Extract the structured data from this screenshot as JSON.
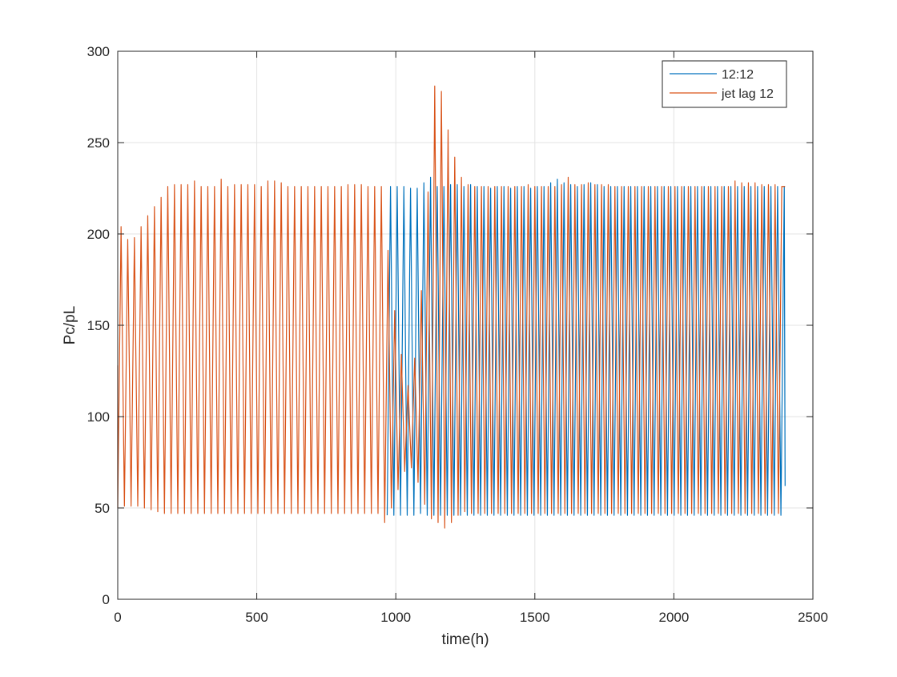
{
  "chart_data": {
    "type": "line",
    "title": "",
    "xlabel": "time(h)",
    "ylabel": "Pc/pL",
    "xlim": [
      0,
      2500
    ],
    "ylim": [
      0,
      300
    ],
    "xticks": [
      0,
      500,
      1000,
      1500,
      2000,
      2500
    ],
    "yticks": [
      0,
      50,
      100,
      150,
      200,
      250,
      300
    ],
    "grid": true,
    "legend_position": "top-right",
    "series": [
      {
        "name": "12:12",
        "color": "#0072BD",
        "period_h": 24,
        "x_range": [
          960,
          2400
        ],
        "peaks": [
          [
            981,
            226
          ],
          [
            1005,
            226
          ],
          [
            1029,
            226
          ],
          [
            1053,
            225
          ],
          [
            1077,
            225
          ],
          [
            1101,
            228
          ],
          [
            1125,
            231
          ],
          [
            1149,
            226
          ],
          [
            1173,
            226
          ],
          [
            1197,
            227
          ],
          [
            1221,
            227
          ],
          [
            1245,
            226
          ],
          [
            1269,
            227
          ],
          [
            1293,
            226
          ],
          [
            1317,
            226
          ],
          [
            1341,
            225
          ],
          [
            1365,
            226
          ],
          [
            1389,
            226
          ],
          [
            1413,
            225
          ],
          [
            1437,
            226
          ],
          [
            1461,
            226
          ],
          [
            1485,
            225
          ],
          [
            1509,
            226
          ],
          [
            1533,
            226
          ],
          [
            1557,
            228
          ],
          [
            1581,
            230
          ],
          [
            1605,
            228
          ],
          [
            1629,
            227
          ],
          [
            1653,
            226
          ],
          [
            1677,
            227
          ],
          [
            1701,
            228
          ],
          [
            1725,
            227
          ],
          [
            1749,
            226
          ],
          [
            1773,
            226
          ],
          [
            1797,
            226
          ],
          [
            1821,
            226
          ],
          [
            1845,
            226
          ],
          [
            1869,
            226
          ],
          [
            1893,
            226
          ],
          [
            1917,
            226
          ],
          [
            1941,
            226
          ],
          [
            1965,
            226
          ],
          [
            1989,
            226
          ],
          [
            2013,
            226
          ],
          [
            2037,
            226
          ],
          [
            2061,
            226
          ],
          [
            2085,
            226
          ],
          [
            2109,
            226
          ],
          [
            2133,
            226
          ],
          [
            2157,
            226
          ],
          [
            2181,
            226
          ],
          [
            2205,
            226
          ],
          [
            2229,
            226
          ],
          [
            2253,
            226
          ],
          [
            2277,
            226
          ],
          [
            2301,
            226
          ],
          [
            2325,
            226
          ],
          [
            2349,
            226
          ],
          [
            2373,
            226
          ],
          [
            2397,
            226
          ]
        ],
        "troughs": [
          [
            969,
            46
          ],
          [
            993,
            46
          ],
          [
            1017,
            46
          ],
          [
            1041,
            46
          ],
          [
            1065,
            46
          ],
          [
            1089,
            47
          ],
          [
            1113,
            46
          ],
          [
            1137,
            46
          ],
          [
            1161,
            46
          ],
          [
            1185,
            46
          ],
          [
            1209,
            46
          ],
          [
            1233,
            46
          ],
          [
            1257,
            46
          ],
          [
            1281,
            46
          ],
          [
            1305,
            46
          ],
          [
            1329,
            46
          ],
          [
            1353,
            46
          ],
          [
            1377,
            46
          ],
          [
            1401,
            46
          ],
          [
            1425,
            46
          ],
          [
            1449,
            46
          ],
          [
            1473,
            46
          ],
          [
            1497,
            46
          ],
          [
            1521,
            46
          ],
          [
            1545,
            46
          ],
          [
            1569,
            46
          ],
          [
            1593,
            46
          ],
          [
            1617,
            46
          ],
          [
            1641,
            46
          ],
          [
            1665,
            46
          ],
          [
            1689,
            46
          ],
          [
            1713,
            46
          ],
          [
            1737,
            46
          ],
          [
            1761,
            46
          ],
          [
            1785,
            46
          ],
          [
            1809,
            46
          ],
          [
            1833,
            46
          ],
          [
            1857,
            46
          ],
          [
            1881,
            46
          ],
          [
            1905,
            46
          ],
          [
            1929,
            46
          ],
          [
            1953,
            46
          ],
          [
            1977,
            46
          ],
          [
            2001,
            46
          ],
          [
            2025,
            46
          ],
          [
            2049,
            46
          ],
          [
            2073,
            46
          ],
          [
            2097,
            46
          ],
          [
            2121,
            46
          ],
          [
            2145,
            46
          ],
          [
            2169,
            46
          ],
          [
            2193,
            46
          ],
          [
            2217,
            46
          ],
          [
            2241,
            46
          ],
          [
            2265,
            46
          ],
          [
            2289,
            46
          ],
          [
            2313,
            46
          ],
          [
            2337,
            46
          ],
          [
            2361,
            46
          ],
          [
            2385,
            46
          ]
        ],
        "end_point": [
          2400,
          62
        ]
      },
      {
        "name": "jet lag 12",
        "color": "#D95319",
        "period_h": 24,
        "start_point": [
          0,
          128
        ],
        "peaks": [
          [
            12,
            204
          ],
          [
            36,
            197
          ],
          [
            60,
            198
          ],
          [
            84,
            204
          ],
          [
            108,
            210
          ],
          [
            132,
            215
          ],
          [
            156,
            220
          ],
          [
            180,
            226
          ],
          [
            204,
            227
          ],
          [
            228,
            227
          ],
          [
            252,
            227
          ],
          [
            276,
            229
          ],
          [
            300,
            226
          ],
          [
            324,
            226
          ],
          [
            348,
            226
          ],
          [
            372,
            230
          ],
          [
            396,
            226
          ],
          [
            420,
            227
          ],
          [
            444,
            227
          ],
          [
            468,
            227
          ],
          [
            492,
            227
          ],
          [
            516,
            226
          ],
          [
            540,
            229
          ],
          [
            564,
            229
          ],
          [
            588,
            228
          ],
          [
            612,
            226
          ],
          [
            636,
            226
          ],
          [
            660,
            226
          ],
          [
            684,
            226
          ],
          [
            708,
            226
          ],
          [
            732,
            226
          ],
          [
            756,
            226
          ],
          [
            780,
            226
          ],
          [
            804,
            226
          ],
          [
            828,
            227
          ],
          [
            852,
            227
          ],
          [
            876,
            227
          ],
          [
            900,
            226
          ],
          [
            924,
            226
          ],
          [
            948,
            226
          ],
          [
            972,
            191
          ],
          [
            996,
            158
          ],
          [
            1020,
            134
          ],
          [
            1044,
            117
          ],
          [
            1068,
            132
          ],
          [
            1092,
            169
          ],
          [
            1116,
            223
          ],
          [
            1140,
            281
          ],
          [
            1164,
            278
          ],
          [
            1188,
            257
          ],
          [
            1212,
            242
          ],
          [
            1236,
            231
          ],
          [
            1260,
            227
          ],
          [
            1284,
            226
          ],
          [
            1308,
            226
          ],
          [
            1332,
            226
          ],
          [
            1356,
            226
          ],
          [
            1380,
            226
          ],
          [
            1404,
            226
          ],
          [
            1428,
            226
          ],
          [
            1452,
            226
          ],
          [
            1476,
            227
          ],
          [
            1500,
            226
          ],
          [
            1524,
            226
          ],
          [
            1548,
            226
          ],
          [
            1572,
            226
          ],
          [
            1596,
            227
          ],
          [
            1620,
            231
          ],
          [
            1644,
            227
          ],
          [
            1668,
            227
          ],
          [
            1692,
            228
          ],
          [
            1716,
            227
          ],
          [
            1740,
            227
          ],
          [
            1764,
            227
          ],
          [
            1788,
            226
          ],
          [
            1812,
            226
          ],
          [
            1836,
            226
          ],
          [
            1860,
            226
          ],
          [
            1884,
            226
          ],
          [
            1908,
            226
          ],
          [
            1932,
            226
          ],
          [
            1956,
            226
          ],
          [
            1980,
            226
          ],
          [
            2004,
            226
          ],
          [
            2028,
            226
          ],
          [
            2052,
            226
          ],
          [
            2076,
            226
          ],
          [
            2100,
            226
          ],
          [
            2124,
            226
          ],
          [
            2148,
            226
          ],
          [
            2172,
            226
          ],
          [
            2196,
            226
          ],
          [
            2220,
            229
          ],
          [
            2244,
            228
          ],
          [
            2268,
            228
          ],
          [
            2292,
            228
          ],
          [
            2316,
            227
          ],
          [
            2340,
            227
          ],
          [
            2364,
            227
          ],
          [
            2388,
            226
          ]
        ],
        "troughs": [
          [
            0,
            50
          ],
          [
            24,
            51
          ],
          [
            48,
            51
          ],
          [
            72,
            51
          ],
          [
            96,
            50
          ],
          [
            120,
            49
          ],
          [
            144,
            48
          ],
          [
            168,
            47
          ],
          [
            192,
            47
          ],
          [
            216,
            47
          ],
          [
            240,
            47
          ],
          [
            264,
            47
          ],
          [
            288,
            47
          ],
          [
            312,
            47
          ],
          [
            336,
            47
          ],
          [
            360,
            47
          ],
          [
            384,
            47
          ],
          [
            408,
            47
          ],
          [
            432,
            47
          ],
          [
            456,
            47
          ],
          [
            480,
            47
          ],
          [
            504,
            47
          ],
          [
            528,
            47
          ],
          [
            552,
            47
          ],
          [
            576,
            47
          ],
          [
            600,
            47
          ],
          [
            624,
            47
          ],
          [
            648,
            47
          ],
          [
            672,
            47
          ],
          [
            696,
            47
          ],
          [
            720,
            47
          ],
          [
            744,
            47
          ],
          [
            768,
            47
          ],
          [
            792,
            47
          ],
          [
            816,
            47
          ],
          [
            840,
            47
          ],
          [
            864,
            47
          ],
          [
            888,
            47
          ],
          [
            912,
            47
          ],
          [
            936,
            47
          ],
          [
            960,
            42
          ],
          [
            984,
            50
          ],
          [
            1008,
            60
          ],
          [
            1032,
            70
          ],
          [
            1056,
            72
          ],
          [
            1080,
            64
          ],
          [
            1104,
            52
          ],
          [
            1128,
            44
          ],
          [
            1152,
            42
          ],
          [
            1176,
            39
          ],
          [
            1200,
            42
          ],
          [
            1224,
            46
          ],
          [
            1248,
            48
          ],
          [
            1272,
            47
          ],
          [
            1296,
            47
          ],
          [
            1320,
            47
          ],
          [
            1344,
            47
          ],
          [
            1368,
            47
          ],
          [
            1392,
            47
          ],
          [
            1416,
            47
          ],
          [
            1440,
            47
          ],
          [
            1464,
            47
          ],
          [
            1488,
            47
          ],
          [
            1512,
            47
          ],
          [
            1536,
            47
          ],
          [
            1560,
            47
          ],
          [
            1584,
            47
          ],
          [
            1608,
            47
          ],
          [
            1632,
            47
          ],
          [
            1656,
            47
          ],
          [
            1680,
            47
          ],
          [
            1704,
            47
          ],
          [
            1728,
            47
          ],
          [
            1752,
            47
          ],
          [
            1776,
            47
          ],
          [
            1800,
            47
          ],
          [
            1824,
            47
          ],
          [
            1848,
            47
          ],
          [
            1872,
            47
          ],
          [
            1896,
            47
          ],
          [
            1920,
            47
          ],
          [
            1944,
            47
          ],
          [
            1968,
            47
          ],
          [
            1992,
            47
          ],
          [
            2016,
            47
          ],
          [
            2040,
            47
          ],
          [
            2064,
            47
          ],
          [
            2088,
            47
          ],
          [
            2112,
            47
          ],
          [
            2136,
            47
          ],
          [
            2160,
            47
          ],
          [
            2184,
            47
          ],
          [
            2208,
            47
          ],
          [
            2232,
            47
          ],
          [
            2256,
            47
          ],
          [
            2280,
            47
          ],
          [
            2304,
            47
          ],
          [
            2328,
            47
          ],
          [
            2352,
            47
          ],
          [
            2376,
            47
          ]
        ],
        "end_point": [
          2400,
          226
        ]
      }
    ]
  }
}
